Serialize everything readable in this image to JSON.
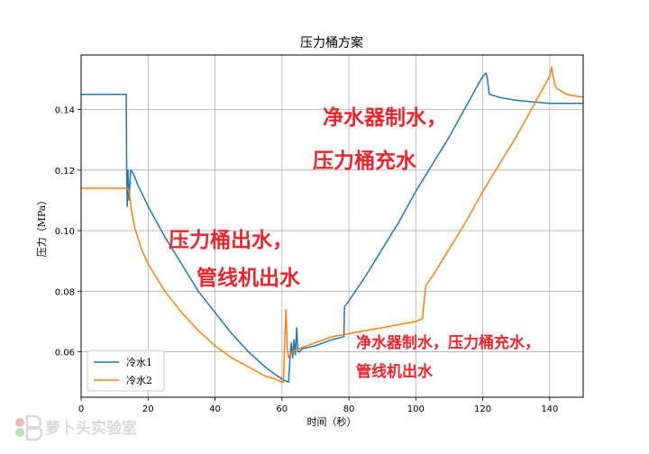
{
  "chart_data": {
    "type": "line",
    "title": "压力桶方案",
    "xlabel": "时间（秒）",
    "ylabel": "压力（MPa）",
    "xlim": [
      0,
      150
    ],
    "ylim": [
      0.045,
      0.158
    ],
    "xticks": [
      0,
      20,
      40,
      60,
      80,
      100,
      120,
      140
    ],
    "yticks": [
      0.06,
      0.08,
      0.1,
      0.12,
      0.14
    ],
    "ytick_labels": [
      "0.06",
      "0.08",
      "0.10",
      "0.12",
      "0.14"
    ],
    "grid": true,
    "legend_position": "lower-left",
    "series": [
      {
        "name": "冷水1",
        "color": "#1f77b4",
        "x": [
          0,
          13.5,
          13.6,
          13.8,
          14.0,
          14.3,
          14.8,
          15.5,
          17,
          20,
          25,
          30,
          35,
          40,
          45,
          50,
          55,
          58,
          60,
          62,
          62.4,
          62.8,
          63.2,
          63.6,
          64.0,
          64.4,
          64.8,
          65.2,
          66,
          70,
          75,
          78.5,
          78.7,
          79.5,
          85,
          90,
          95,
          100,
          105,
          110,
          115,
          120,
          121,
          121.4,
          121.8,
          122,
          125,
          130,
          135,
          140,
          145,
          150
        ],
        "y": [
          0.145,
          0.145,
          0.12,
          0.108,
          0.12,
          0.11,
          0.12,
          0.119,
          0.115,
          0.108,
          0.098,
          0.089,
          0.08,
          0.073,
          0.066,
          0.06,
          0.055,
          0.0525,
          0.051,
          0.05,
          0.058,
          0.063,
          0.058,
          0.064,
          0.059,
          0.068,
          0.06,
          0.06,
          0.061,
          0.062,
          0.064,
          0.065,
          0.075,
          0.076,
          0.085,
          0.094,
          0.103,
          0.113,
          0.122,
          0.131,
          0.141,
          0.151,
          0.152,
          0.15,
          0.146,
          0.145,
          0.144,
          0.143,
          0.1425,
          0.142,
          0.142,
          0.142
        ]
      },
      {
        "name": "冷水2",
        "color": "#ff7f0e",
        "x": [
          0,
          14,
          14.5,
          15,
          16,
          18,
          20,
          25,
          30,
          35,
          40,
          45,
          50,
          55,
          58,
          60,
          60.4,
          60.8,
          61.2,
          61.6,
          62,
          62.4,
          63,
          65,
          70,
          75,
          80,
          85,
          90,
          95,
          100,
          102,
          102.5,
          103,
          105,
          110,
          115,
          120,
          125,
          130,
          135,
          140,
          140.6,
          141,
          141.6,
          142,
          145,
          150
        ],
        "y": [
          0.114,
          0.114,
          0.112,
          0.107,
          0.101,
          0.094,
          0.089,
          0.08,
          0.073,
          0.067,
          0.062,
          0.058,
          0.055,
          0.052,
          0.051,
          0.05,
          0.05,
          0.062,
          0.074,
          0.061,
          0.058,
          0.059,
          0.06,
          0.061,
          0.063,
          0.065,
          0.066,
          0.067,
          0.068,
          0.069,
          0.07,
          0.071,
          0.077,
          0.082,
          0.085,
          0.094,
          0.103,
          0.113,
          0.122,
          0.131,
          0.141,
          0.151,
          0.154,
          0.151,
          0.148,
          0.147,
          0.145,
          0.144
        ]
      }
    ],
    "annotations": [
      {
        "lines": [
          "压力桶出水，",
          "管线机出水"
        ]
      },
      {
        "lines": [
          "净水器制水，",
          "压力桶充水"
        ]
      },
      {
        "lines": [
          "净水器制水，压力桶充水，",
          "管线机出水"
        ]
      }
    ]
  },
  "watermark": "萝卜头实验室"
}
